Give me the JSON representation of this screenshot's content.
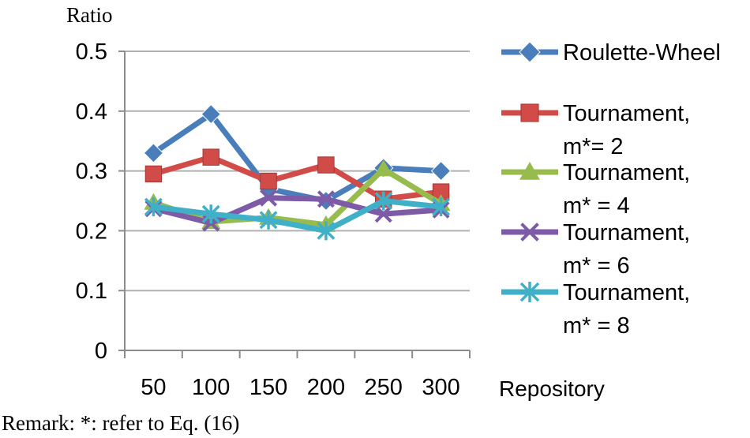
{
  "chart_data": {
    "type": "line",
    "ylabel": "Ratio",
    "xlabel": "Repository",
    "ylim": [
      0,
      0.5
    ],
    "yticks": [
      "0",
      "0.1",
      "0.2",
      "0.3",
      "0.4",
      "0.5"
    ],
    "categories": [
      "50",
      "100",
      "150",
      "200",
      "250",
      "300"
    ],
    "grid": "horizontal",
    "legend_position": "right",
    "series": [
      {
        "name": "Roulette-Wheel",
        "legend_lines": [
          "Roulette-Wheel"
        ],
        "color": "#4a7ebb",
        "marker": "diamond",
        "values": [
          0.33,
          0.395,
          0.27,
          0.25,
          0.305,
          0.3
        ]
      },
      {
        "name": "Tournament, m*= 2",
        "legend_lines": [
          "Tournament,",
          "m*= 2"
        ],
        "color": "#d14c48",
        "marker": "square",
        "values": [
          0.295,
          0.323,
          0.283,
          0.31,
          0.253,
          0.265
        ]
      },
      {
        "name": "Tournament, m* = 4",
        "legend_lines": [
          "Tournament,",
          "m* = 4"
        ],
        "color": "#98bb4e",
        "marker": "triangle",
        "values": [
          0.247,
          0.215,
          0.222,
          0.21,
          0.303,
          0.245
        ]
      },
      {
        "name": "Tournament, m* = 6",
        "legend_lines": [
          "Tournament,",
          "m* = 6"
        ],
        "color": "#7d5ba6",
        "marker": "x",
        "values": [
          0.237,
          0.213,
          0.255,
          0.253,
          0.228,
          0.235
        ]
      },
      {
        "name": "Tournament, m* = 8",
        "legend_lines": [
          "Tournament,",
          "m* = 8"
        ],
        "color": "#3fb0c8",
        "marker": "star",
        "values": [
          0.24,
          0.228,
          0.218,
          0.2,
          0.25,
          0.24
        ]
      }
    ]
  },
  "remark": "Remark: *: refer to Eq. (16)"
}
